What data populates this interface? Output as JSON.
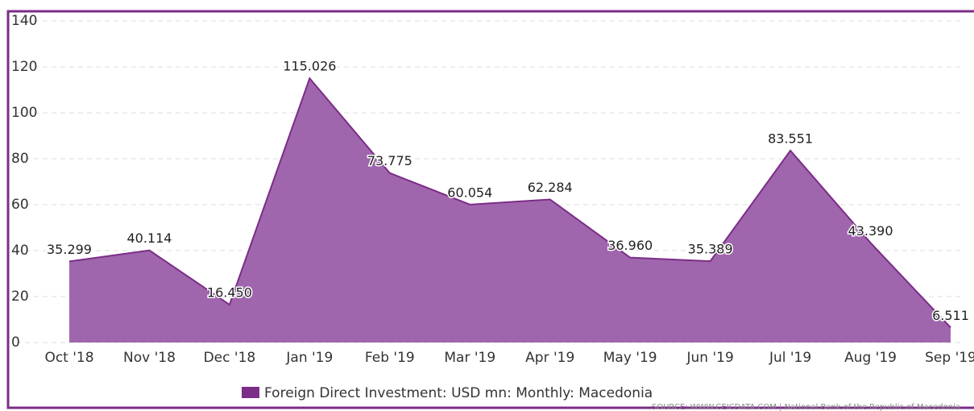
{
  "chart_data": {
    "type": "area",
    "categories": [
      "Oct '18",
      "Nov '18",
      "Dec '18",
      "Jan '19",
      "Feb '19",
      "Mar '19",
      "Apr '19",
      "May '19",
      "Jun '19",
      "Jul '19",
      "Aug '19",
      "Sep '19"
    ],
    "series": [
      {
        "name": "Foreign Direct Investment: USD mn: Monthly: Macedonia",
        "color": "#7b2d87",
        "fill": "#a066ad",
        "values": [
          35.299,
          40.114,
          16.45,
          115.026,
          73.775,
          60.054,
          62.284,
          36.96,
          35.389,
          83.551,
          43.39,
          6.511
        ],
        "value_labels": [
          "35.299",
          "40.114",
          "16.450",
          "115.026",
          "73.775",
          "60.054",
          "62.284",
          "36.960",
          "35.389",
          "83.551",
          "43.390",
          "6.511"
        ]
      }
    ],
    "ylim": [
      0,
      140
    ],
    "yticks": [
      0,
      20,
      40,
      60,
      80,
      100,
      120,
      140
    ],
    "grid": true,
    "source": "SOURCE: WWW.CEICDATA.COM | National Bank of the Republic of Macedonia"
  }
}
